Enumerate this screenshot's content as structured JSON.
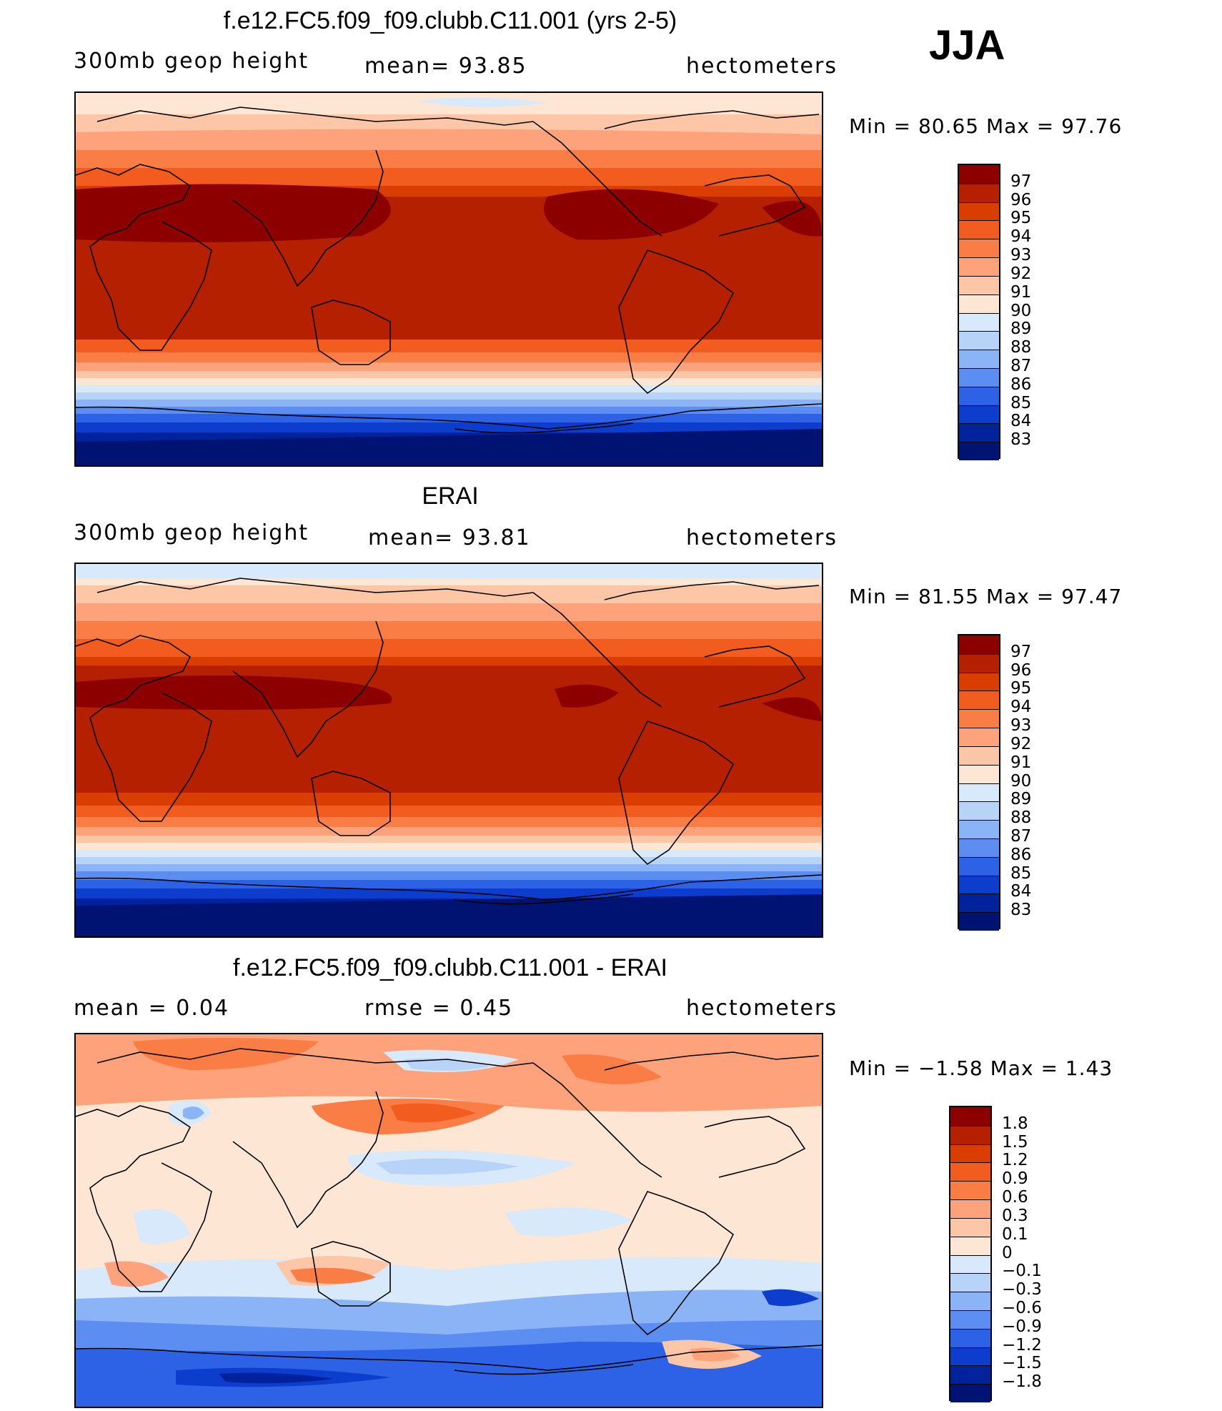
{
  "season": "JJA",
  "panels": [
    {
      "id": "model",
      "title": "f.e12.FC5.f09_f09.clubb.C11.001 (yrs 2-5)",
      "left_label": "300mb  geop  height",
      "center_label": "mean=   93.85",
      "right_label": "hectometers",
      "min_max": "Min  =    80.65  Max  =    97.76",
      "scale": "abs",
      "legend_labels": [
        "97",
        "96",
        "95",
        "94",
        "93",
        "92",
        "91",
        "90",
        "89",
        "88",
        "87",
        "86",
        "85",
        "84",
        "83"
      ]
    },
    {
      "id": "obs",
      "title": "ERAI",
      "left_label": "300mb  geop  height",
      "center_label": "mean=   93.81",
      "right_label": "hectometers",
      "min_max": "Min  =    81.55  Max  =    97.47",
      "scale": "abs",
      "legend_labels": [
        "97",
        "96",
        "95",
        "94",
        "93",
        "92",
        "91",
        "90",
        "89",
        "88",
        "87",
        "86",
        "85",
        "84",
        "83"
      ]
    },
    {
      "id": "diff",
      "title": "f.e12.FC5.f09_f09.clubb.C11.001 - ERAI",
      "left_label": "mean  =      0.04",
      "center_label": "rmse  =      0.45",
      "right_label": "hectometers",
      "min_max": "Min  =    −1.58  Max  =       1.43",
      "scale": "diff",
      "legend_labels": [
        "1.8",
        "1.5",
        "1.2",
        "0.9",
        "0.6",
        "0.3",
        "0.1",
        "0",
        "−0.1",
        "−0.3",
        "−0.6",
        "−0.9",
        "−1.2",
        "−1.5",
        "−1.8"
      ]
    }
  ],
  "colors": {
    "abs": [
      "#8c0000",
      "#b52000",
      "#d93d00",
      "#f25c1f",
      "#fa7d45",
      "#fda27a",
      "#fdc6a6",
      "#fde6d4",
      "#d7e9fb",
      "#b7d3f8",
      "#8ab4f5",
      "#5c8df0",
      "#2e62e6",
      "#0c3dcc",
      "#00229c",
      "#001272"
    ],
    "diff": [
      "#8c0000",
      "#b52000",
      "#d93d00",
      "#f25c1f",
      "#fa7d45",
      "#fda27a",
      "#fdc6a6",
      "#fde6d4",
      "#d7e9fb",
      "#b7d3f8",
      "#8ab4f5",
      "#5c8df0",
      "#2e62e6",
      "#0c3dcc",
      "#00229c",
      "#001272"
    ]
  }
}
